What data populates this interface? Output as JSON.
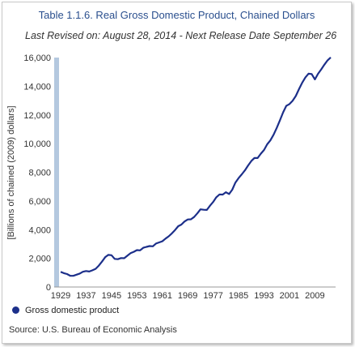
{
  "chart_data": {
    "type": "line",
    "title": "Table 1.1.6. Real Gross Domestic Product, Chained Dollars",
    "subtitle": "Last Revised on: August 28, 2014 - Next Release Date September 26",
    "xlabel": "",
    "ylabel": "[Billions of chained (2009) dollars]",
    "source": "Source: U.S. Bureau of Economic Analysis",
    "x_ticks": [
      "1929",
      "1937",
      "1945",
      "1953",
      "1961",
      "1969",
      "1977",
      "1985",
      "1993",
      "2001",
      "2009"
    ],
    "y_ticks": [
      "0",
      "2,000",
      "4,000",
      "6,000",
      "8,000",
      "10,000",
      "12,000",
      "14,000",
      "16,000"
    ],
    "ylim": [
      0,
      16000
    ],
    "xlim": [
      1929,
      2014
    ],
    "legend_position": "bottom-left",
    "grid": false,
    "series_color": "#1c2f8a",
    "series": [
      {
        "name": "Gross domestic product",
        "x": [
          1929,
          1930,
          1931,
          1932,
          1933,
          1934,
          1935,
          1936,
          1937,
          1938,
          1939,
          1940,
          1941,
          1942,
          1943,
          1944,
          1945,
          1946,
          1947,
          1948,
          1949,
          1950,
          1951,
          1952,
          1953,
          1954,
          1955,
          1956,
          1957,
          1958,
          1959,
          1960,
          1961,
          1962,
          1963,
          1964,
          1965,
          1966,
          1967,
          1968,
          1969,
          1970,
          1971,
          1972,
          1973,
          1974,
          1975,
          1976,
          1977,
          1978,
          1979,
          1980,
          1981,
          1982,
          1983,
          1984,
          1985,
          1986,
          1987,
          1988,
          1989,
          1990,
          1991,
          1992,
          1993,
          1994,
          1995,
          1996,
          1997,
          1998,
          1999,
          2000,
          2001,
          2002,
          2003,
          2004,
          2005,
          2006,
          2007,
          2008,
          2009,
          2010,
          2011,
          2012,
          2013,
          2014
        ],
        "values": [
          1056,
          966,
          904,
          788,
          778,
          862,
          939,
          1061,
          1115,
          1078,
          1164,
          1266,
          1491,
          1772,
          2073,
          2239,
          2218,
          1960,
          1939,
          2021,
          2008,
          2184,
          2360,
          2456,
          2571,
          2557,
          2739,
          2797,
          2856,
          2836,
          3032,
          3108,
          3189,
          3378,
          3531,
          3735,
          3976,
          4238,
          4355,
          4570,
          4712,
          4722,
          4878,
          5134,
          5418,
          5390,
          5379,
          5669,
          5931,
          6260,
          6459,
          6443,
          6610,
          6485,
          6786,
          7280,
          7594,
          7861,
          8133,
          8475,
          8786,
          9001,
          8993,
          9302,
          9556,
          9952,
          10222,
          10617,
          11092,
          11610,
          12179,
          12631,
          12757,
          12982,
          13318,
          13795,
          14236,
          14610,
          14873,
          14855,
          14479,
          14868,
          15172,
          15502,
          15805,
          16010
        ]
      }
    ]
  }
}
